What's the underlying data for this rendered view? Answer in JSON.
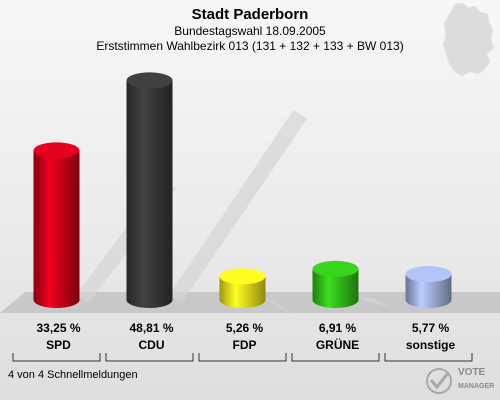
{
  "header": {
    "title": "Stadt Paderborn",
    "subtitle": "Bundestagswahl 18.09.2005",
    "subtitle2": "Erststimmen Wahlbezirk 013 (131 + 132 + 133 + BW 013)"
  },
  "footer": {
    "note": "4 von 4 Schnellmeldungen",
    "logo_line1": "VOTE",
    "logo_line2": "MANAGER"
  },
  "chart_data": {
    "type": "bar",
    "title": "Stadt Paderborn",
    "categories": [
      "SPD",
      "CDU",
      "FDP",
      "GRÜNE",
      "sonstige"
    ],
    "values": [
      33.25,
      48.81,
      5.26,
      6.91,
      5.77
    ],
    "value_labels": [
      "33,25 %",
      "48,81 %",
      "5,26 %",
      "6,91 %",
      "5,77 %"
    ],
    "unit": "%",
    "colors": [
      "#d0001a",
      "#3a3a3a",
      "#f2e51c",
      "#33c21a",
      "#a3b3e0"
    ],
    "ylim": [
      0,
      50
    ],
    "grid": false,
    "legend": "none"
  }
}
